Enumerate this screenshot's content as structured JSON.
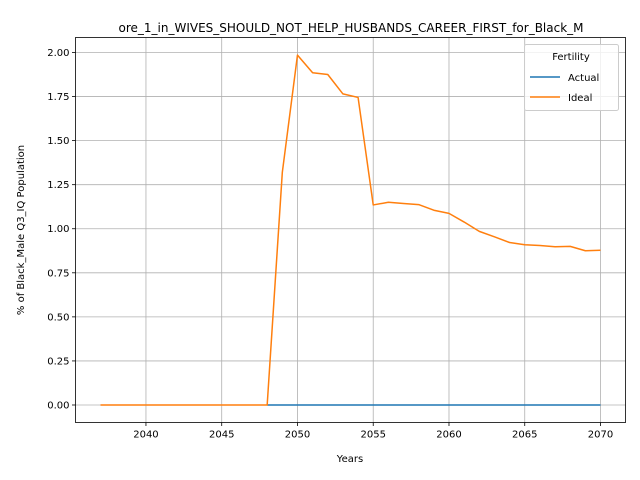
{
  "chart_data": {
    "type": "line",
    "title": "ore_1_in_WIVES_SHOULD_NOT_HELP_HUSBANDS_CAREER_FIRST_for_Black_M",
    "xlabel": "Years",
    "ylabel": "% of Black_Male Q3_IQ Population",
    "xlim": [
      2035.35,
      2071.65
    ],
    "ylim": [
      -0.0993,
      2.085
    ],
    "xticks": [
      2040,
      2045,
      2050,
      2055,
      2060,
      2065,
      2070
    ],
    "yticks": [
      0.0,
      0.25,
      0.5,
      0.75,
      1.0,
      1.25,
      1.5,
      1.75,
      2.0
    ],
    "ytick_labels": [
      "0.00",
      "0.25",
      "0.50",
      "0.75",
      "1.00",
      "1.25",
      "1.50",
      "1.75",
      "2.00"
    ],
    "grid": true,
    "legend": {
      "title": "Fertility",
      "position": "top-right"
    },
    "series": [
      {
        "name": "Actual",
        "color": "#1f77b4",
        "x": [
          2048,
          2070
        ],
        "y": [
          0,
          0
        ]
      },
      {
        "name": "Ideal",
        "color": "#ff7f0e",
        "x": [
          2037,
          2038,
          2039,
          2040,
          2041,
          2042,
          2043,
          2044,
          2045,
          2046,
          2047,
          2048,
          2049,
          2050,
          2051,
          2052,
          2053,
          2054,
          2055,
          2056,
          2057,
          2058,
          2059,
          2060,
          2061,
          2062,
          2063,
          2064,
          2065,
          2066,
          2067,
          2068,
          2069,
          2070
        ],
        "y": [
          0,
          0,
          0,
          0,
          0,
          0,
          0,
          0,
          0,
          0,
          0,
          0,
          1.32,
          1.985,
          1.885,
          1.875,
          1.765,
          1.745,
          1.135,
          1.15,
          1.143,
          1.137,
          1.105,
          1.087,
          1.038,
          0.985,
          0.954,
          0.922,
          0.909,
          0.905,
          0.898,
          0.9,
          0.875,
          0.878
        ]
      }
    ]
  }
}
